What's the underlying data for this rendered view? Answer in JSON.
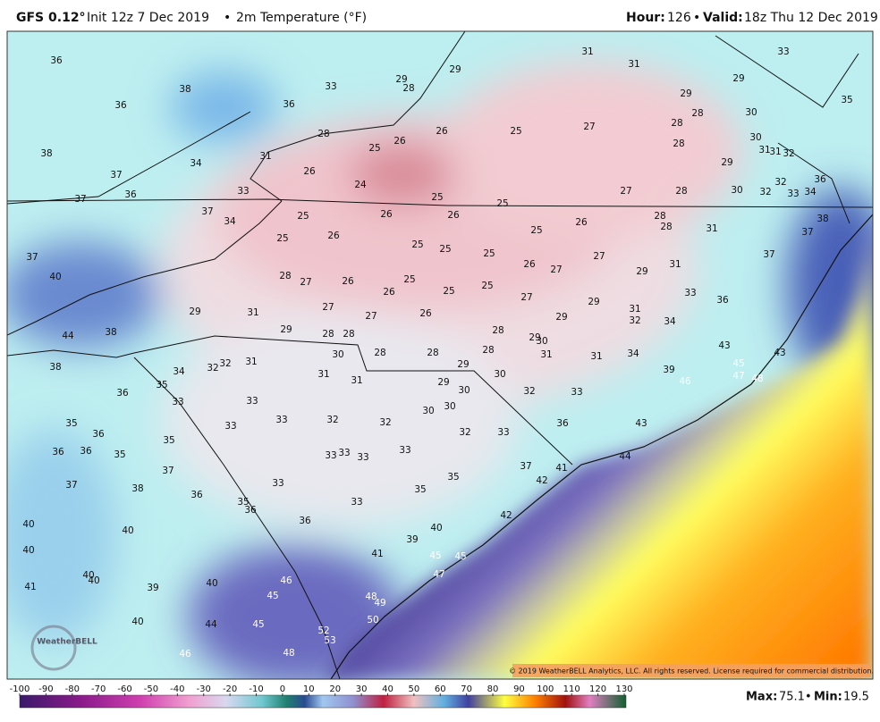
{
  "header": {
    "model": "GFS 0.12°",
    "init": "Init 12z 7 Dec 2019",
    "sep": "•",
    "field": "2m Temperature (°F)",
    "hour_label": "Hour:",
    "hour": "126",
    "valid_label": "Valid:",
    "valid": "18z Thu 12 Dec 2019"
  },
  "station_temps": [
    36,
    38,
    36,
    36,
    33,
    29,
    28,
    29,
    31,
    31,
    29,
    33,
    29,
    28,
    28,
    35,
    30,
    38,
    34,
    31,
    28,
    25,
    26,
    26,
    25,
    27,
    28,
    29,
    30,
    37,
    37,
    36,
    26,
    24,
    33,
    25,
    25,
    27,
    28,
    30,
    32,
    32,
    33,
    34,
    36,
    31,
    31,
    32,
    37,
    34,
    25,
    26,
    26,
    26,
    28,
    28,
    25,
    31,
    38,
    37,
    25,
    26,
    25,
    25,
    25,
    37,
    27,
    26,
    27,
    31,
    29,
    40,
    28,
    27,
    26,
    25,
    26,
    25,
    25,
    27,
    33,
    36,
    37,
    29,
    31,
    27,
    27,
    26,
    29,
    31,
    32,
    34,
    29,
    44,
    38,
    29,
    28,
    28,
    28,
    29,
    30,
    28,
    28,
    28,
    30,
    31,
    31,
    34,
    38,
    34,
    32,
    32,
    31,
    31,
    31,
    29,
    30,
    43,
    43,
    45,
    39,
    46,
    47,
    48,
    36,
    35,
    33,
    33,
    29,
    30,
    32,
    33,
    35,
    36,
    33,
    33,
    32,
    32,
    30,
    30,
    32,
    33,
    36,
    43,
    36,
    36,
    35,
    35,
    33,
    33,
    33,
    33,
    44,
    37,
    41,
    37,
    38,
    37,
    36,
    35,
    36,
    33,
    35,
    35,
    42,
    40,
    40,
    36,
    33,
    40,
    42,
    40,
    41,
    39,
    45,
    45,
    40,
    40,
    41,
    39,
    40,
    46,
    45,
    47,
    48,
    49,
    50,
    40,
    44,
    45,
    52,
    53,
    46,
    48
  ],
  "colorbar": {
    "ticks": [
      -100,
      -90,
      -80,
      -70,
      -60,
      -50,
      -40,
      -30,
      -20,
      -10,
      0,
      10,
      20,
      30,
      40,
      50,
      60,
      70,
      80,
      90,
      100,
      110,
      120,
      130
    ]
  },
  "stats": {
    "max_label": "Max:",
    "max": 75.1,
    "min_label": "Min:",
    "min": 19.5
  },
  "logo": "WeatherBELL",
  "copyright": "© 2019 WeatherBELL Analytics, LLC. All rights reserved. License required for commercial distribution."
}
